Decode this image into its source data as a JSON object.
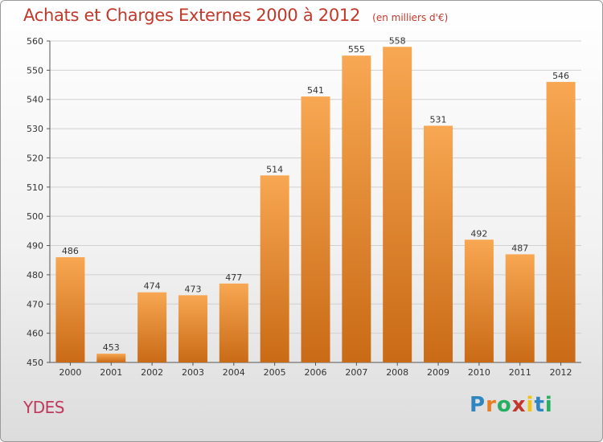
{
  "title": "Achats et Charges Externes 2000 à 2012",
  "subtitle": "(en milliers d'€)",
  "commune": "YDES",
  "logo": {
    "text": "Proxiti",
    "letters": [
      {
        "ch": "P",
        "color": "#2e86c1"
      },
      {
        "ch": "r",
        "color": "#e67e22"
      },
      {
        "ch": "o",
        "color": "#27ae60"
      },
      {
        "ch": "x",
        "color": "#c0392b"
      },
      {
        "ch": "i",
        "color": "#f1c40f"
      },
      {
        "ch": "t",
        "color": "#2e86c1"
      },
      {
        "ch": "i",
        "color": "#27ae60"
      }
    ]
  },
  "colors": {
    "bar_top": "#f8a752",
    "bar_bottom": "#c96a16",
    "title": "#c0392b",
    "grid": "#d0d0d0"
  },
  "chart_data": {
    "type": "bar",
    "categories": [
      "2000",
      "2001",
      "2002",
      "2003",
      "2004",
      "2005",
      "2006",
      "2007",
      "2008",
      "2009",
      "2010",
      "2011",
      "2012"
    ],
    "values": [
      486,
      453,
      474,
      473,
      477,
      514,
      541,
      555,
      558,
      531,
      492,
      487,
      546
    ],
    "ylim": [
      450,
      560
    ],
    "yticks": [
      450,
      460,
      470,
      480,
      490,
      500,
      510,
      520,
      530,
      540,
      550,
      560
    ],
    "grid": true,
    "data_labels": true
  }
}
